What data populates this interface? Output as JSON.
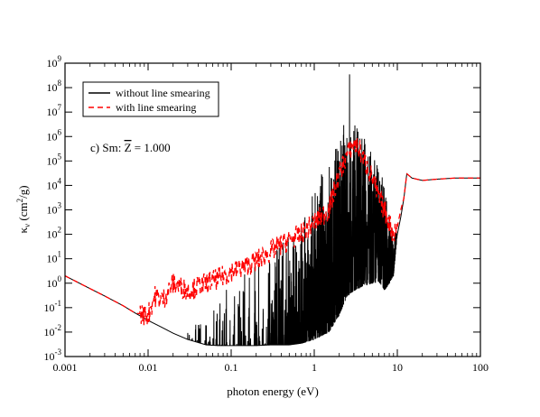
{
  "chart_data": {
    "type": "line",
    "xscale": "log",
    "yscale": "log",
    "xlim": [
      0.001,
      100
    ],
    "ylim": [
      0.001,
      1000000000
    ],
    "xlabel": "photon energy (eV)",
    "ylabel": "κν (cm²/g)",
    "x_ticks": [
      "0.001",
      "0.01",
      "0.1",
      "1",
      "10",
      "100"
    ],
    "y_ticks": [
      "10-3",
      "10-2",
      "10-1",
      "100",
      "101",
      "102",
      "103",
      "104",
      "105",
      "106",
      "107",
      "108",
      "109"
    ],
    "annotation": "c) Sm: Z̄ = 1.000",
    "legend_position": "top-left",
    "series": [
      {
        "name": "without line smearing",
        "color": "#000000",
        "style": "solid",
        "x": [
          0.001,
          0.002,
          0.003,
          0.005,
          0.007,
          0.01,
          0.015,
          0.02,
          0.03,
          0.05,
          0.07,
          0.1,
          0.15,
          0.2,
          0.3,
          0.5,
          0.7,
          1,
          1.5,
          2,
          2.5,
          3,
          4,
          5,
          6,
          7,
          8,
          9,
          10,
          11,
          12,
          13,
          15,
          20,
          30,
          50,
          100
        ],
        "y": [
          2.0,
          0.6,
          0.3,
          0.12,
          0.06,
          0.03,
          0.015,
          0.009,
          0.005,
          0.003,
          0.0028,
          0.0028,
          0.0028,
          0.0028,
          0.003,
          0.003,
          0.0035,
          0.005,
          0.01,
          0.05,
          0.3,
          0.5,
          0.8,
          1.0,
          1.2,
          0.5,
          1.0,
          2.0,
          100,
          500,
          3000,
          30000,
          20000,
          16000,
          18000,
          20000,
          20000
        ],
        "envelope_max_x": [
          0.03,
          0.05,
          0.1,
          0.15,
          0.2,
          0.3,
          0.5,
          0.7,
          1,
          1.5,
          2,
          2.5,
          2.7,
          3,
          3.5,
          4,
          5,
          6,
          7,
          8,
          9,
          10
        ],
        "envelope_max_y": [
          0.01,
          0.05,
          1,
          3,
          10,
          30,
          100,
          300,
          10000,
          100000,
          1000000,
          10000000,
          1000000000,
          10000000,
          1000000,
          1000000,
          300000,
          100000,
          10000,
          1000,
          200,
          100
        ]
      },
      {
        "name": "with line smearing",
        "color": "#ff0000",
        "style": "dashed",
        "x": [
          0.001,
          0.002,
          0.003,
          0.005,
          0.007,
          0.01,
          0.012,
          0.015,
          0.02,
          0.03,
          0.05,
          0.07,
          0.1,
          0.15,
          0.2,
          0.3,
          0.5,
          0.7,
          1,
          1.5,
          2,
          2.5,
          3,
          3.5,
          4,
          5,
          6,
          7,
          8,
          9,
          10,
          11,
          12,
          13,
          15,
          20,
          30,
          50,
          100
        ],
        "y": [
          2.0,
          0.6,
          0.3,
          0.12,
          0.06,
          0.05,
          0.3,
          0.2,
          1.0,
          0.5,
          1.0,
          1.5,
          3,
          5,
          8,
          20,
          60,
          100,
          300,
          1000,
          30000,
          200000,
          500000,
          300000,
          100000,
          20000,
          3000,
          1000,
          300,
          100,
          200,
          1000,
          3000,
          30000,
          20000,
          16000,
          18000,
          20000,
          20000
        ]
      }
    ]
  }
}
